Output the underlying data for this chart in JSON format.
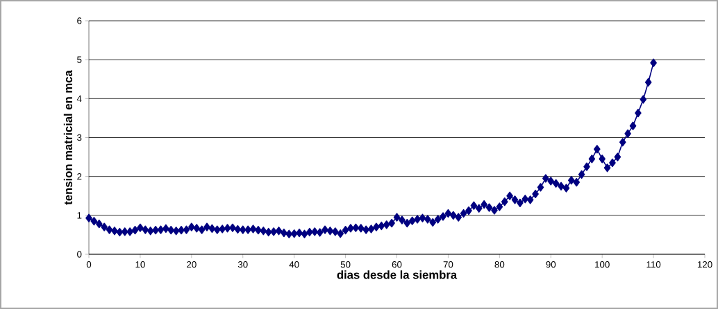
{
  "chart_data": {
    "type": "line",
    "xlabel": "dias desde la siembra",
    "ylabel": "tension matricial en mca",
    "x": [
      0,
      1,
      2,
      3,
      4,
      5,
      6,
      7,
      8,
      9,
      10,
      11,
      12,
      13,
      14,
      15,
      16,
      17,
      18,
      19,
      20,
      21,
      22,
      23,
      24,
      25,
      26,
      27,
      28,
      29,
      30,
      31,
      32,
      33,
      34,
      35,
      36,
      37,
      38,
      39,
      40,
      41,
      42,
      43,
      44,
      45,
      46,
      47,
      48,
      49,
      50,
      51,
      52,
      53,
      54,
      55,
      56,
      57,
      58,
      59,
      60,
      61,
      62,
      63,
      64,
      65,
      66,
      67,
      68,
      69,
      70,
      71,
      72,
      73,
      74,
      75,
      76,
      77,
      78,
      79,
      80,
      81,
      82,
      83,
      84,
      85,
      86,
      87,
      88,
      89,
      90,
      91,
      92,
      93,
      94,
      95,
      96,
      97,
      98,
      99,
      100,
      101,
      102,
      103,
      104,
      105,
      106,
      107,
      108,
      109,
      110
    ],
    "series": [
      {
        "color": "#000080",
        "values": [
          0.93,
          0.85,
          0.78,
          0.7,
          0.63,
          0.6,
          0.57,
          0.58,
          0.58,
          0.62,
          0.68,
          0.63,
          0.6,
          0.62,
          0.63,
          0.66,
          0.62,
          0.6,
          0.62,
          0.63,
          0.7,
          0.67,
          0.63,
          0.7,
          0.66,
          0.63,
          0.65,
          0.67,
          0.68,
          0.64,
          0.63,
          0.63,
          0.65,
          0.62,
          0.6,
          0.57,
          0.58,
          0.6,
          0.55,
          0.52,
          0.53,
          0.55,
          0.52,
          0.57,
          0.58,
          0.56,
          0.63,
          0.6,
          0.58,
          0.53,
          0.62,
          0.67,
          0.68,
          0.67,
          0.63,
          0.65,
          0.7,
          0.73,
          0.76,
          0.8,
          0.95,
          0.88,
          0.8,
          0.86,
          0.9,
          0.93,
          0.9,
          0.82,
          0.9,
          0.97,
          1.05,
          1.0,
          0.95,
          1.05,
          1.12,
          1.25,
          1.18,
          1.28,
          1.2,
          1.13,
          1.22,
          1.35,
          1.5,
          1.4,
          1.32,
          1.42,
          1.4,
          1.55,
          1.72,
          1.95,
          1.88,
          1.82,
          1.75,
          1.7,
          1.9,
          1.85,
          2.05,
          2.25,
          2.45,
          2.7,
          2.45,
          2.22,
          2.35,
          2.5,
          2.88,
          3.1,
          3.3,
          3.63,
          3.98,
          4.42,
          4.92
        ]
      }
    ],
    "xlim": [
      0,
      120
    ],
    "xticks": [
      0,
      10,
      20,
      30,
      40,
      50,
      60,
      70,
      80,
      90,
      100,
      110,
      120
    ],
    "ylim": [
      0,
      6
    ],
    "yticks": [
      0,
      1,
      2,
      3,
      4,
      5,
      6
    ],
    "grid": "y",
    "marker": "diamond",
    "line_style": "solid"
  }
}
